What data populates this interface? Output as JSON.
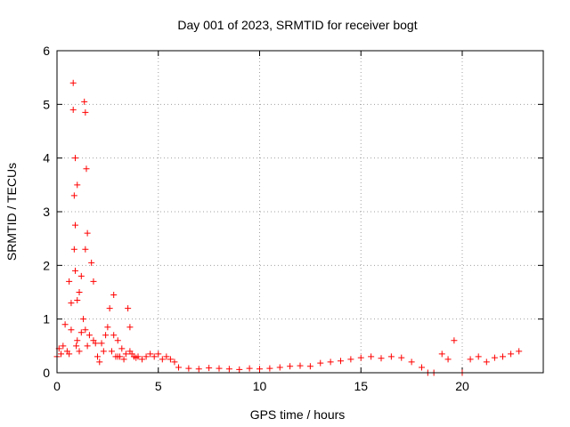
{
  "chart_data": {
    "type": "scatter",
    "title": "Day 001 of 2023, SRMTID for receiver bogt",
    "xlabel": "GPS time / hours",
    "ylabel": "SRMTID / TECUs",
    "xlim": [
      0,
      24
    ],
    "ylim": [
      0,
      6
    ],
    "xticks": [
      0,
      5,
      10,
      15,
      20
    ],
    "xtick_labels": [
      "0",
      "5",
      "10",
      "15",
      "20"
    ],
    "yticks": [
      0,
      1,
      2,
      3,
      4,
      5,
      6
    ],
    "ytick_labels": [
      "0",
      "1",
      "2",
      "3",
      "4",
      "5",
      "6"
    ],
    "grid": true,
    "marker": "+",
    "series": [
      {
        "name": "SRMTID",
        "color": "#ff0000",
        "x": [
          0.0,
          0.1,
          0.2,
          0.3,
          0.4,
          0.5,
          0.6,
          0.6,
          0.7,
          0.7,
          0.8,
          0.8,
          0.85,
          0.85,
          0.9,
          0.9,
          0.9,
          0.95,
          1.0,
          1.0,
          1.0,
          1.1,
          1.1,
          1.2,
          1.2,
          1.3,
          1.35,
          1.4,
          1.4,
          1.4,
          1.45,
          1.5,
          1.5,
          1.6,
          1.7,
          1.8,
          1.8,
          1.9,
          2.0,
          2.1,
          2.2,
          2.3,
          2.4,
          2.5,
          2.6,
          2.7,
          2.8,
          2.8,
          2.9,
          3.0,
          3.0,
          3.1,
          3.2,
          3.3,
          3.4,
          3.5,
          3.6,
          3.6,
          3.7,
          3.8,
          3.9,
          4.0,
          4.2,
          4.4,
          4.6,
          4.8,
          5.0,
          5.2,
          5.4,
          5.6,
          5.8,
          6.0,
          6.5,
          7.0,
          7.5,
          8.0,
          8.5,
          9.0,
          9.5,
          10.0,
          10.5,
          11.0,
          11.5,
          12.0,
          12.5,
          13.0,
          13.5,
          14.0,
          14.5,
          15.0,
          15.5,
          16.0,
          16.5,
          17.0,
          17.5,
          18.0,
          18.3,
          18.6,
          19.0,
          19.3,
          19.6,
          20.0,
          20.4,
          20.8,
          21.2,
          21.6,
          22.0,
          22.4,
          22.8
        ],
        "y": [
          0.3,
          0.45,
          0.35,
          0.5,
          0.9,
          0.4,
          1.7,
          0.35,
          1.3,
          0.8,
          5.4,
          4.9,
          2.3,
          3.3,
          4.0,
          2.75,
          1.9,
          0.5,
          3.5,
          1.35,
          0.6,
          1.5,
          0.4,
          1.8,
          0.75,
          1.0,
          5.05,
          4.85,
          2.3,
          0.8,
          3.8,
          2.6,
          0.5,
          0.7,
          2.05,
          1.7,
          0.6,
          0.55,
          0.3,
          0.2,
          0.55,
          0.4,
          0.7,
          0.85,
          1.2,
          0.4,
          1.45,
          0.7,
          0.3,
          0.6,
          0.3,
          0.3,
          0.45,
          0.25,
          0.35,
          1.2,
          0.85,
          0.4,
          0.35,
          0.3,
          0.28,
          0.3,
          0.25,
          0.3,
          0.35,
          0.3,
          0.35,
          0.25,
          0.3,
          0.25,
          0.2,
          0.1,
          0.08,
          0.07,
          0.09,
          0.08,
          0.07,
          0.06,
          0.08,
          0.07,
          0.08,
          0.1,
          0.12,
          0.13,
          0.12,
          0.18,
          0.2,
          0.22,
          0.25,
          0.28,
          0.3,
          0.27,
          0.3,
          0.28,
          0.2,
          0.1,
          0.0,
          0.0,
          0.35,
          0.25,
          0.6,
          0.0,
          0.25,
          0.3,
          0.2,
          0.28,
          0.3,
          0.35,
          0.4
        ]
      }
    ]
  }
}
